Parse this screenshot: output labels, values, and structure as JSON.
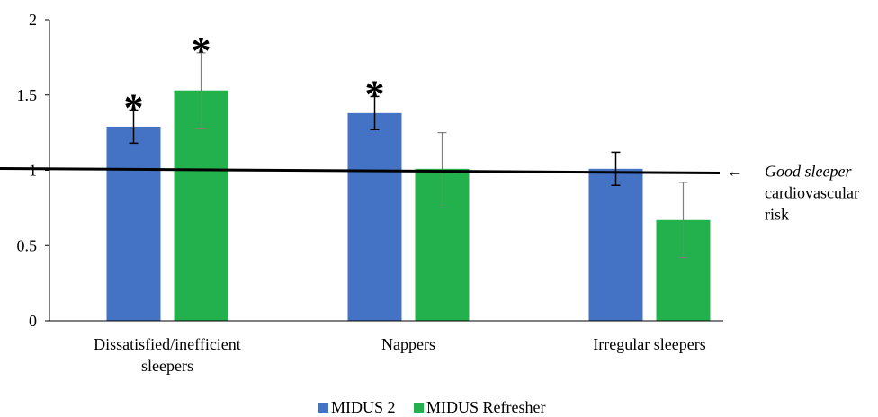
{
  "chart_data": {
    "type": "bar",
    "categories": [
      [
        "Dissatisfied/inefficient",
        "sleepers"
      ],
      [
        "Nappers"
      ],
      [
        "Irregular sleepers"
      ]
    ],
    "series": [
      {
        "name": "MIDUS 2",
        "color": "#4472C4",
        "values": [
          1.29,
          1.38,
          1.01
        ],
        "err_low": [
          1.18,
          1.27,
          0.9
        ],
        "err_high": [
          1.4,
          1.49,
          1.12
        ],
        "significant": [
          true,
          true,
          false
        ]
      },
      {
        "name": "MIDUS Refresher",
        "color": "#22B14C",
        "values": [
          1.53,
          1.01,
          0.67
        ],
        "err_low": [
          1.28,
          0.75,
          0.42
        ],
        "err_high": [
          1.78,
          1.25,
          0.92
        ],
        "significant": [
          true,
          false,
          false
        ]
      }
    ],
    "significance_marker": "*",
    "ylim": [
      0,
      2
    ],
    "yticks": [
      "0",
      "0.5",
      "1",
      "1.5",
      "2"
    ],
    "ytick_values": [
      0,
      0.5,
      1,
      1.5,
      2
    ],
    "reference_line": {
      "value": 1.0,
      "arrow": "←",
      "label_italic": "Good sleeper",
      "label_rest": [
        "cardiovascular",
        "risk"
      ]
    },
    "legend_position": "bottom"
  }
}
